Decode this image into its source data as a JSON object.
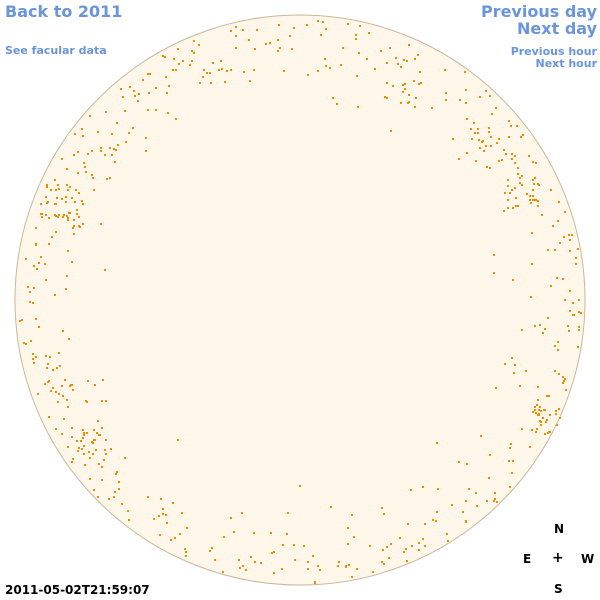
{
  "nav": {
    "back_label": "Back to 2011",
    "facular_label": "See facular data",
    "prev_day_label": "Previous day",
    "next_day_label": "Next day",
    "prev_hour_label": "Previous hour",
    "next_hour_label": "Next hour"
  },
  "timestamp": "2011-05-02T21:59:07",
  "compass": {
    "north": "N",
    "east": "E",
    "center": "+",
    "west": "W",
    "south": "S"
  },
  "colors": {
    "link": "#6a95dc",
    "disk_fill": "#fff8ea",
    "disk_edge": "#c9b79c",
    "facula": "#f08c00"
  }
}
